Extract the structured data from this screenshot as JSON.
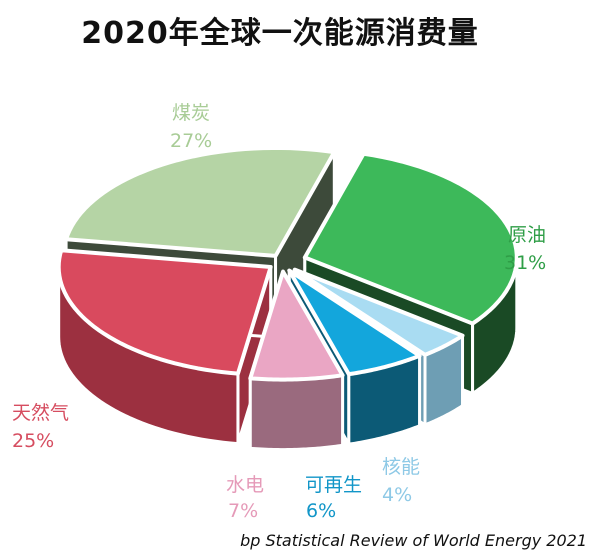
{
  "chart_data": {
    "type": "pie",
    "style": "3d-exploded",
    "title": "2020年全球一次能源消费量",
    "slices": [
      {
        "label": "原油",
        "value": 31,
        "value_text": "31%",
        "color": "#3db95a",
        "side_color": "#1a4a25",
        "text_color": "#2f9e47"
      },
      {
        "label": "核能",
        "value": 4,
        "value_text": "4%",
        "color": "#a9dcf2",
        "side_color": "#6e9eb4",
        "text_color": "#8ec9e6"
      },
      {
        "label": "可再生",
        "value": 6,
        "value_text": "6%",
        "color": "#13a6dc",
        "side_color": "#0c5a76",
        "text_color": "#1296c8"
      },
      {
        "label": "水电",
        "value": 7,
        "value_text": "7%",
        "color": "#eaa6c4",
        "side_color": "#9a6a7e",
        "text_color": "#e59ab8"
      },
      {
        "label": "天然气",
        "value": 25,
        "value_text": "25%",
        "color": "#d94a5e",
        "side_color": "#9c3040",
        "text_color": "#d64d60"
      },
      {
        "label": "煤炭",
        "value": 27,
        "value_text": "27%",
        "color": "#b5d4a5",
        "side_color": "#3d4a3a",
        "text_color": "#a8cc96"
      }
    ]
  },
  "source": "bp Statistical Review of World Energy 2021"
}
